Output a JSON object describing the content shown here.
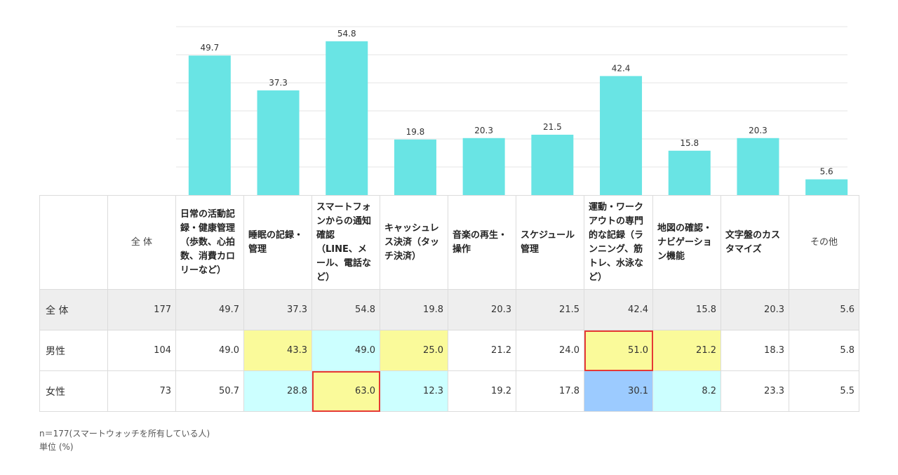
{
  "chart_data": {
    "type": "bar",
    "categories": [
      "日常の活動記録・健康管理（歩数、心拍数、消費カロリーなど）",
      "睡眠の記録・管理",
      "スマートフォンからの通知確認（LINE、メール、電話など）",
      "キャッシュレス決済（タッチ決済）",
      "音楽の再生・操作",
      "スケジュール管理",
      "運動・ワークアウトの専門的な記録（ランニング、筋トレ、水泳など）",
      "地図の確認・ナビゲーション機能",
      "文字盤のカスタマイズ",
      "その他"
    ],
    "values": [
      49.7,
      37.3,
      54.8,
      19.8,
      20.3,
      21.5,
      42.4,
      15.8,
      20.3,
      5.6
    ],
    "value_labels": [
      "49.7",
      "37.3",
      "54.8",
      "19.8",
      "20.3",
      "21.5",
      "42.4",
      "15.8",
      "20.3",
      "5.6"
    ],
    "ylim": [
      0,
      60
    ],
    "grid": true,
    "bar_color": "#69e4e4",
    "grid_color": "#e6e6e6"
  },
  "table": {
    "total_header": "全 体",
    "headers": [
      "日常の活動記録・健康管理（歩数、心拍数、消費カロリーなど）",
      "睡眠の記録・管理",
      "スマートフォンからの通知確認（LINE、メール、電話など）",
      "キャッシュレス決済（タッチ決済）",
      "音楽の再生・操作",
      "スケジュール管理",
      "運動・ワークアウトの専門的な記録（ランニング、筋トレ、水泳など）",
      "地図の確認・ナビゲーション機能",
      "文字盤のカスタマイズ",
      "その他"
    ],
    "rows": [
      {
        "label": "全 体",
        "n": "177",
        "values": [
          "49.7",
          "37.3",
          "54.8",
          "19.8",
          "20.3",
          "21.5",
          "42.4",
          "15.8",
          "20.3",
          "5.6"
        ]
      },
      {
        "label": "男性",
        "n": "104",
        "values": [
          "49.0",
          "43.3",
          "49.0",
          "25.0",
          "21.2",
          "24.0",
          "51.0",
          "21.2",
          "18.3",
          "5.8"
        ]
      },
      {
        "label": "女性",
        "n": "73",
        "values": [
          "50.7",
          "28.8",
          "63.0",
          "12.3",
          "19.2",
          "17.8",
          "30.1",
          "8.2",
          "23.3",
          "5.5"
        ]
      }
    ],
    "highlight_colors": {
      "higher": "#fafa9a",
      "lower": "#ccffff",
      "lowest": "#9ccbff",
      "max_border": "#e53935"
    }
  },
  "notes": {
    "sample": "n＝177(スマートウォッチを所有している人)",
    "unit": "単位 (%)"
  }
}
